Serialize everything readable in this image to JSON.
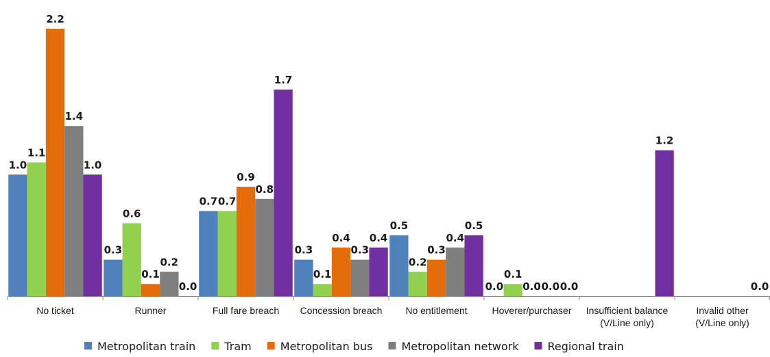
{
  "chart_data": {
    "type": "bar",
    "title": "",
    "xlabel": "",
    "ylabel": "",
    "ylim": [
      0,
      2.2
    ],
    "grid": false,
    "legend_position": "bottom",
    "categories": [
      [
        "No ticket"
      ],
      [
        "Runner"
      ],
      [
        "Full fare breach"
      ],
      [
        "Concession breach"
      ],
      [
        "No entitlement"
      ],
      [
        "Hoverer/purchaser"
      ],
      [
        "Insufficient balance",
        "(V/Line only)"
      ],
      [
        "Invalid other",
        "(V/Line only)"
      ]
    ],
    "series": [
      {
        "name": "Metropolitan train",
        "color": "#4f81bd",
        "values": [
          1.0,
          0.3,
          0.7,
          0.3,
          0.5,
          0.0,
          null,
          null
        ],
        "labels": [
          "1.0",
          "0.3",
          "0.7",
          "0.3",
          "0.5",
          "0.0",
          "",
          ""
        ]
      },
      {
        "name": "Tram",
        "color": "#92d050",
        "values": [
          1.1,
          0.6,
          0.7,
          0.1,
          0.2,
          0.1,
          null,
          null
        ],
        "labels": [
          "1.1",
          "0.6",
          "0.7",
          "0.1",
          "0.2",
          "0.1",
          "",
          ""
        ]
      },
      {
        "name": "Metropolitan bus",
        "color": "#e46c0a",
        "values": [
          2.2,
          0.1,
          0.9,
          0.4,
          0.3,
          0.0,
          null,
          null
        ],
        "labels": [
          "2.2",
          "0.1",
          "0.9",
          "0.4",
          "0.3",
          "0.0",
          "",
          ""
        ]
      },
      {
        "name": "Metropolitan network",
        "color": "#7f7f7f",
        "values": [
          1.4,
          0.2,
          0.8,
          0.3,
          0.4,
          0.0,
          null,
          null
        ],
        "labels": [
          "1.4",
          "0.2",
          "0.8",
          "0.3",
          "0.4",
          "0.0",
          "",
          ""
        ]
      },
      {
        "name": "Regional train",
        "color": "#7030a0",
        "values": [
          1.0,
          0.0,
          1.7,
          0.4,
          0.5,
          0.0,
          1.2,
          0.0
        ],
        "labels": [
          "1.0",
          "0.0",
          "1.7",
          "0.4",
          "0.5",
          "0.0",
          "1.2",
          "0.0"
        ]
      }
    ]
  }
}
